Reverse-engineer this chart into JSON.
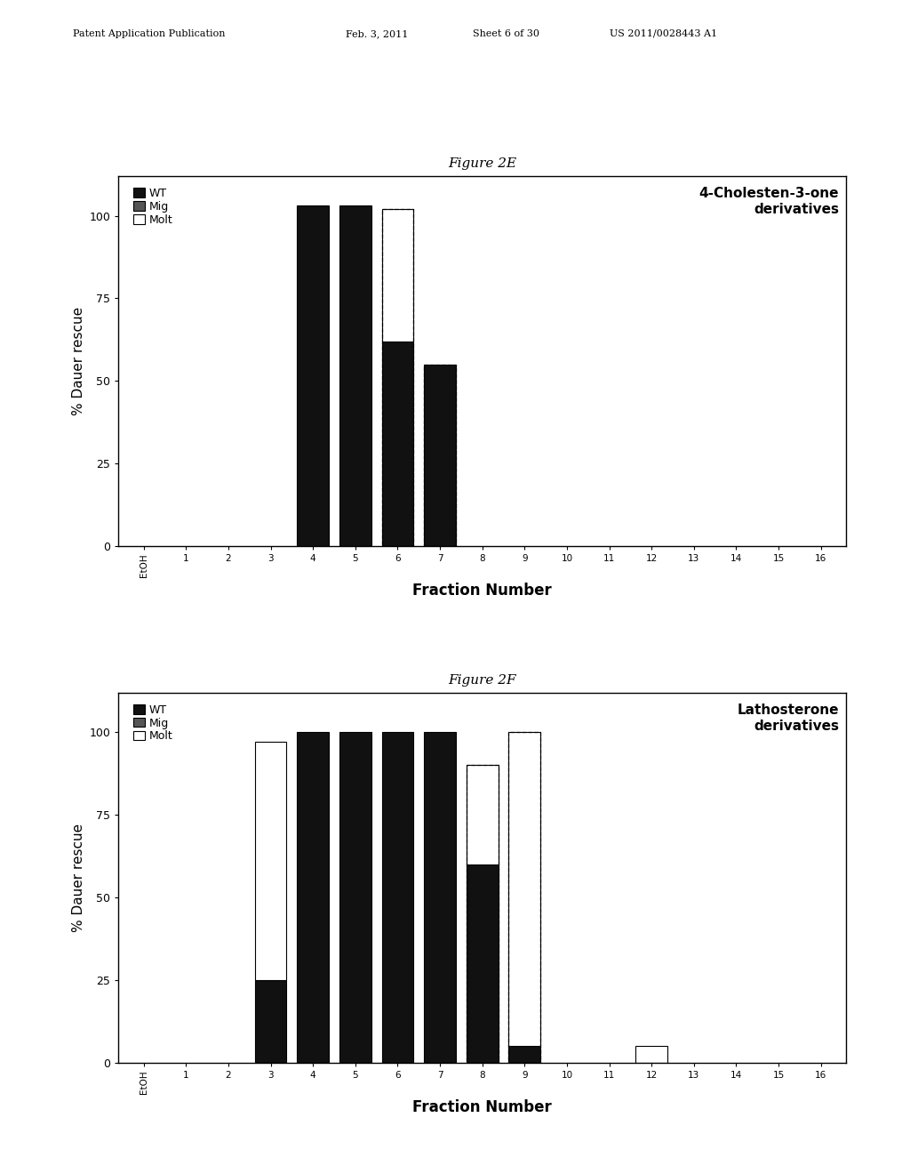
{
  "fig2e": {
    "title": "Figure 2E",
    "subtitle": "4-Cholesten-3-one\nderivatives",
    "ylabel": "% Dauer rescue",
    "xlabel": "Fraction Number",
    "xtick_labels": [
      "EtOH",
      "1",
      "2",
      "3",
      "4",
      "5",
      "6",
      "7",
      "8",
      "9",
      "10",
      "11",
      "12",
      "13",
      "14",
      "15",
      "16"
    ],
    "ylim": [
      0,
      112
    ],
    "yticks": [
      0,
      25,
      50,
      75,
      100
    ],
    "bars": {
      "EtOH": {
        "WT": 0,
        "Mig": 0,
        "Molt": 0
      },
      "1": {
        "WT": 0,
        "Mig": 0,
        "Molt": 0
      },
      "2": {
        "WT": 0,
        "Mig": 0,
        "Molt": 0
      },
      "3": {
        "WT": 0,
        "Mig": 0,
        "Molt": 0
      },
      "4": {
        "WT": 103,
        "Mig": 0,
        "Molt": 0
      },
      "5": {
        "WT": 103,
        "Mig": 0,
        "Molt": 0
      },
      "6": {
        "WT": 62,
        "Mig": 0,
        "Molt": 40
      },
      "7": {
        "WT": 55,
        "Mig": 0,
        "Molt": 0
      },
      "8": {
        "WT": 0,
        "Mig": 0,
        "Molt": 0
      },
      "9": {
        "WT": 0,
        "Mig": 0,
        "Molt": 0
      },
      "10": {
        "WT": 0,
        "Mig": 0,
        "Molt": 0
      },
      "11": {
        "WT": 0,
        "Mig": 0,
        "Molt": 0
      },
      "12": {
        "WT": 0,
        "Mig": 0,
        "Molt": 0
      },
      "13": {
        "WT": 0,
        "Mig": 0,
        "Molt": 0
      },
      "14": {
        "WT": 0,
        "Mig": 0,
        "Molt": 0
      },
      "15": {
        "WT": 0,
        "Mig": 0,
        "Molt": 0
      },
      "16": {
        "WT": 0,
        "Mig": 0,
        "Molt": 0
      }
    },
    "dashed_fractions": [
      "6",
      "7"
    ],
    "colors": {
      "WT": "#111111",
      "Mig": "#555555",
      "Molt": "#ffffff"
    },
    "edgecolor": "#000000"
  },
  "fig2f": {
    "title": "Figure 2F",
    "subtitle": "Lathosterone\nderivatives",
    "ylabel": "% Dauer rescue",
    "xlabel": "Fraction Number",
    "xtick_labels": [
      "EtOH",
      "1",
      "2",
      "3",
      "4",
      "5",
      "6",
      "7",
      "8",
      "9",
      "10",
      "11",
      "12",
      "13",
      "14",
      "15",
      "16"
    ],
    "ylim": [
      0,
      112
    ],
    "yticks": [
      0,
      25,
      50,
      75,
      100
    ],
    "bars": {
      "EtOH": {
        "WT": 0,
        "Mig": 0,
        "Molt": 0
      },
      "1": {
        "WT": 0,
        "Mig": 0,
        "Molt": 0
      },
      "2": {
        "WT": 0,
        "Mig": 0,
        "Molt": 0
      },
      "3": {
        "WT": 25,
        "Mig": 0,
        "Molt": 72
      },
      "4": {
        "WT": 100,
        "Mig": 0,
        "Molt": 0
      },
      "5": {
        "WT": 100,
        "Mig": 0,
        "Molt": 0
      },
      "6": {
        "WT": 100,
        "Mig": 0,
        "Molt": 0
      },
      "7": {
        "WT": 100,
        "Mig": 0,
        "Molt": 0
      },
      "8": {
        "WT": 60,
        "Mig": 0,
        "Molt": 30
      },
      "9": {
        "WT": 5,
        "Mig": 0,
        "Molt": 95
      },
      "10": {
        "WT": 0,
        "Mig": 0,
        "Molt": 0
      },
      "11": {
        "WT": 0,
        "Mig": 0,
        "Molt": 0
      },
      "12": {
        "WT": 0,
        "Mig": 0,
        "Molt": 5
      },
      "13": {
        "WT": 0,
        "Mig": 0,
        "Molt": 0
      },
      "14": {
        "WT": 0,
        "Mig": 0,
        "Molt": 0
      },
      "15": {
        "WT": 0,
        "Mig": 0,
        "Molt": 0
      },
      "16": {
        "WT": 0,
        "Mig": 0,
        "Molt": 0
      }
    },
    "dashed_fractions": [
      "8",
      "9"
    ],
    "colors": {
      "WT": "#111111",
      "Mig": "#555555",
      "Molt": "#ffffff"
    },
    "edgecolor": "#000000"
  },
  "header_line1": "Patent Application Publication",
  "header_line2": "Feb. 3, 2011",
  "header_line3": "Sheet 6 of 30",
  "header_line4": "US 2011/0028443 A1",
  "background_color": "#ffffff",
  "bar_width": 0.75
}
